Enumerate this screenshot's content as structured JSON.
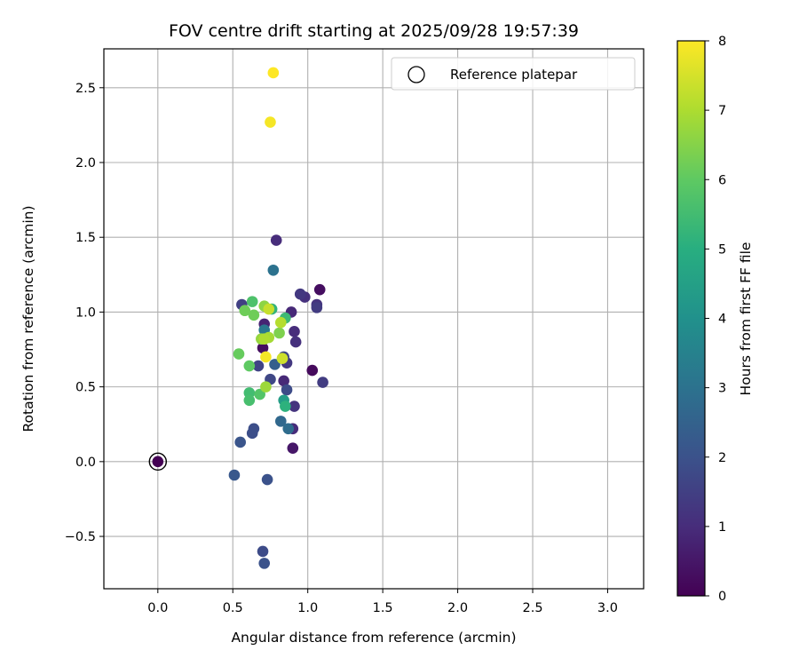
{
  "chart_data": {
    "type": "scatter",
    "title": "FOV centre drift starting at 2025/09/28 19:57:39",
    "xlabel": "Angular distance from reference (arcmin)",
    "ylabel": "Rotation from reference (arcmin)",
    "xlim": [
      -0.36,
      3.24
    ],
    "ylim": [
      -0.85,
      2.76
    ],
    "xticks": [
      0.0,
      0.5,
      1.0,
      1.5,
      2.0,
      2.5,
      3.0
    ],
    "xtick_labels": [
      "0.0",
      "0.5",
      "1.0",
      "1.5",
      "2.0",
      "2.5",
      "3.0"
    ],
    "yticks": [
      -0.5,
      0.0,
      0.5,
      1.0,
      1.5,
      2.0,
      2.5
    ],
    "ytick_labels": [
      "−0.5",
      "0.0",
      "0.5",
      "1.0",
      "1.5",
      "2.0",
      "2.5"
    ],
    "grid": true,
    "legend": {
      "position": "top-right",
      "entries": [
        "Reference platepar"
      ]
    },
    "colorbar": {
      "label": "Hours from first FF file",
      "colormap": "viridis",
      "range": [
        0,
        8
      ],
      "ticks": [
        "0",
        "1",
        "2",
        "3",
        "4",
        "5",
        "6",
        "7",
        "8"
      ]
    },
    "reference": {
      "x": 0.0,
      "y": 0.0
    },
    "points": [
      {
        "x": 0.0,
        "y": 0.0,
        "c": 0.0
      },
      {
        "x": 1.03,
        "y": 0.61,
        "c": 0.2
      },
      {
        "x": 1.08,
        "y": 1.15,
        "c": 0.3
      },
      {
        "x": 0.7,
        "y": 0.76,
        "c": 0.3
      },
      {
        "x": 0.9,
        "y": 0.09,
        "c": 0.5
      },
      {
        "x": 0.71,
        "y": 0.92,
        "c": 0.8
      },
      {
        "x": 0.84,
        "y": 0.54,
        "c": 0.9
      },
      {
        "x": 0.89,
        "y": 1.0,
        "c": 0.9
      },
      {
        "x": 0.79,
        "y": 1.48,
        "c": 1.0
      },
      {
        "x": 0.91,
        "y": 0.87,
        "c": 1.0
      },
      {
        "x": 0.9,
        "y": 0.22,
        "c": 1.0
      },
      {
        "x": 0.92,
        "y": 0.8,
        "c": 1.1
      },
      {
        "x": 0.98,
        "y": 1.1,
        "c": 1.1
      },
      {
        "x": 1.06,
        "y": 1.05,
        "c": 1.2
      },
      {
        "x": 0.91,
        "y": 0.37,
        "c": 1.2
      },
      {
        "x": 0.95,
        "y": 1.12,
        "c": 1.3
      },
      {
        "x": 0.86,
        "y": 0.66,
        "c": 1.3
      },
      {
        "x": 1.1,
        "y": 0.53,
        "c": 1.4
      },
      {
        "x": 1.06,
        "y": 1.03,
        "c": 1.4
      },
      {
        "x": 0.56,
        "y": 1.05,
        "c": 1.5
      },
      {
        "x": 0.67,
        "y": 0.64,
        "c": 1.6
      },
      {
        "x": 0.84,
        "y": 0.7,
        "c": 1.7
      },
      {
        "x": 0.75,
        "y": 0.55,
        "c": 1.7
      },
      {
        "x": 0.86,
        "y": 0.48,
        "c": 1.8
      },
      {
        "x": 0.7,
        "y": -0.6,
        "c": 1.8
      },
      {
        "x": 0.64,
        "y": 0.22,
        "c": 1.9
      },
      {
        "x": 0.63,
        "y": 0.19,
        "c": 1.9
      },
      {
        "x": 0.73,
        "y": -0.12,
        "c": 2.0
      },
      {
        "x": 0.71,
        "y": -0.68,
        "c": 2.0
      },
      {
        "x": 0.55,
        "y": 0.13,
        "c": 2.1
      },
      {
        "x": 0.51,
        "y": -0.09,
        "c": 2.2
      },
      {
        "x": 0.78,
        "y": 0.65,
        "c": 2.4
      },
      {
        "x": 0.82,
        "y": 0.27,
        "c": 2.7
      },
      {
        "x": 0.87,
        "y": 0.22,
        "c": 2.8
      },
      {
        "x": 0.77,
        "y": 1.28,
        "c": 3.0
      },
      {
        "x": 0.71,
        "y": 0.88,
        "c": 3.2
      },
      {
        "x": 0.84,
        "y": 0.41,
        "c": 4.4
      },
      {
        "x": 0.85,
        "y": 0.37,
        "c": 5.1
      },
      {
        "x": 0.76,
        "y": 1.02,
        "c": 5.2
      },
      {
        "x": 0.85,
        "y": 0.96,
        "c": 5.4
      },
      {
        "x": 0.61,
        "y": 0.46,
        "c": 5.5
      },
      {
        "x": 0.61,
        "y": 0.41,
        "c": 5.6
      },
      {
        "x": 0.63,
        "y": 1.07,
        "c": 5.7
      },
      {
        "x": 0.68,
        "y": 0.45,
        "c": 5.8
      },
      {
        "x": 0.61,
        "y": 0.64,
        "c": 6.0
      },
      {
        "x": 0.54,
        "y": 0.72,
        "c": 6.1
      },
      {
        "x": 0.58,
        "y": 1.01,
        "c": 6.2
      },
      {
        "x": 0.64,
        "y": 0.98,
        "c": 6.2
      },
      {
        "x": 0.81,
        "y": 0.86,
        "c": 6.4
      },
      {
        "x": 0.71,
        "y": 1.04,
        "c": 6.6
      },
      {
        "x": 0.69,
        "y": 0.82,
        "c": 6.7
      },
      {
        "x": 0.72,
        "y": 0.5,
        "c": 6.8
      },
      {
        "x": 0.74,
        "y": 0.83,
        "c": 6.9
      },
      {
        "x": 0.71,
        "y": 0.82,
        "c": 7.0
      },
      {
        "x": 0.82,
        "y": 0.93,
        "c": 7.1
      },
      {
        "x": 0.74,
        "y": 1.02,
        "c": 7.3
      },
      {
        "x": 0.83,
        "y": 0.69,
        "c": 7.4
      },
      {
        "x": 0.72,
        "y": 0.7,
        "c": 7.9
      },
      {
        "x": 0.75,
        "y": 2.27,
        "c": 7.9
      },
      {
        "x": 0.77,
        "y": 2.6,
        "c": 8.0
      }
    ]
  }
}
